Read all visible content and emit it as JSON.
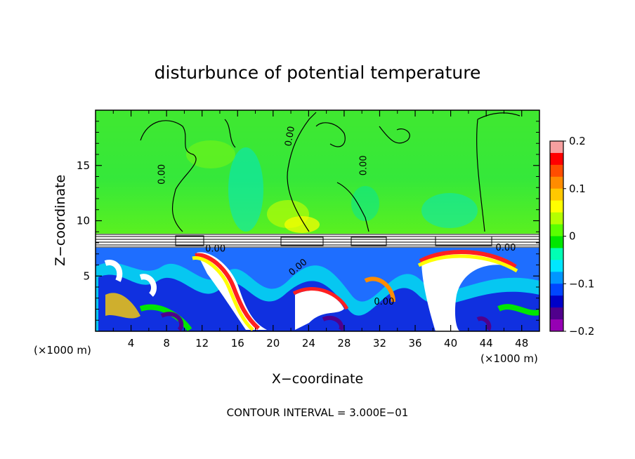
{
  "chart_data": {
    "type": "heatmap",
    "title": "disturbunce of potential temperature",
    "xlabel": "X−coordinate",
    "ylabel": "Z−coordinate",
    "x_unit_left": "(×1000 m)",
    "x_unit_right": "(×1000 m)",
    "xlim": [
      0,
      50
    ],
    "ylim": [
      0,
      20
    ],
    "x_ticks": [
      4,
      8,
      12,
      16,
      20,
      24,
      28,
      32,
      36,
      40,
      44,
      48
    ],
    "x_tick_labels": [
      "4",
      "8",
      "12",
      "16",
      "20",
      "24",
      "28",
      "32",
      "36",
      "40",
      "44",
      "48"
    ],
    "y_ticks": [
      5,
      10,
      15
    ],
    "y_tick_labels": [
      "5",
      "10",
      "15"
    ],
    "colorbar": {
      "min": -0.2,
      "max": 0.2,
      "ticks": [
        0.2,
        0.1,
        0,
        -0.1,
        -0.2
      ],
      "tick_labels": [
        "0.2",
        "0.1",
        "0",
        "−0.1",
        "−0.2"
      ],
      "colors": [
        "#f7a0a0",
        "#ff0000",
        "#ff4d00",
        "#ff8c00",
        "#ffc800",
        "#ffff00",
        "#b4ff00",
        "#5aff00",
        "#00e600",
        "#00ffb4",
        "#00e6ff",
        "#0096ff",
        "#0046ff",
        "#0000c8",
        "#50008c",
        "#9600b4"
      ]
    },
    "contour_labels": [
      "0.00",
      "0.00",
      "0.00",
      "0.00",
      "0.00",
      "0.00",
      "0.00"
    ],
    "footer": "CONTOUR INTERVAL = 3.000E−01",
    "grid": false
  }
}
